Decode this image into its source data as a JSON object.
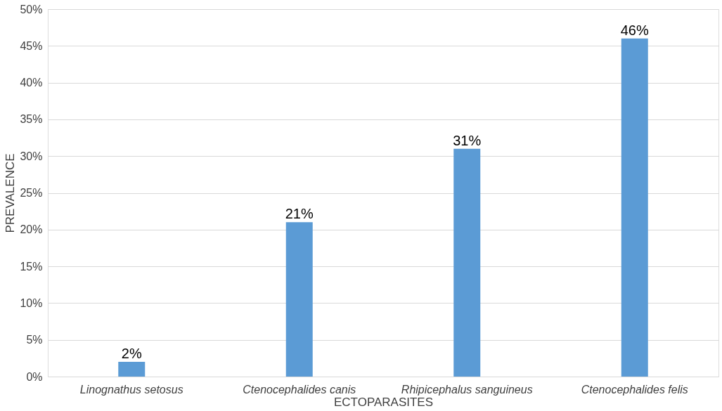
{
  "chart_data": {
    "type": "bar",
    "xlabel": "ECTOPARASITES",
    "ylabel": "PREVALENCE",
    "categories": [
      "Linognathus setosus",
      "Ctenocephalides canis",
      "Rhipicephalus sanguineus",
      "Ctenocephalides felis"
    ],
    "values": [
      2,
      21,
      31,
      46
    ],
    "color": "#5b9bd5",
    "value_labels": [
      "2%",
      "21%",
      "31%",
      "46%"
    ],
    "ylim": [
      0,
      50
    ],
    "yticks": [
      {
        "value": 0,
        "label": "0%"
      },
      {
        "value": 5,
        "label": "5%"
      },
      {
        "value": 10,
        "label": "10%"
      },
      {
        "value": 15,
        "label": "15%"
      },
      {
        "value": 20,
        "label": "20%"
      },
      {
        "value": 25,
        "label": "25%"
      },
      {
        "value": 30,
        "label": "30%"
      },
      {
        "value": 35,
        "label": "35%"
      },
      {
        "value": 40,
        "label": "40%"
      },
      {
        "value": 45,
        "label": "45%"
      },
      {
        "value": 50,
        "label": "50%"
      }
    ],
    "grid": "y"
  }
}
